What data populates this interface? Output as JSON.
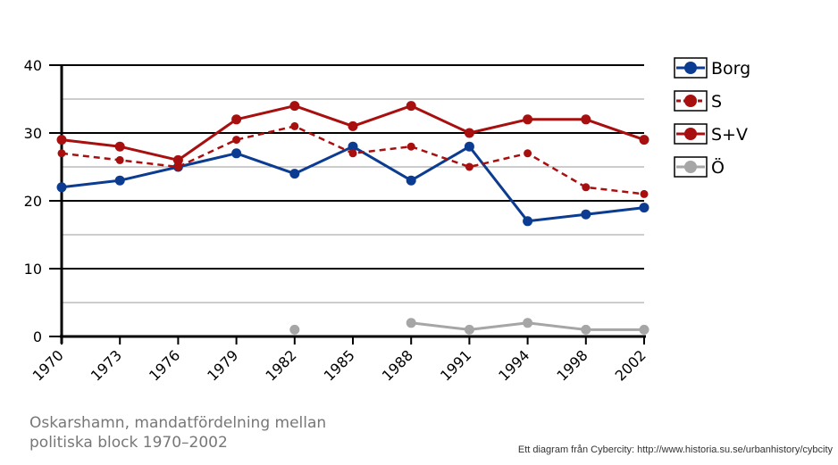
{
  "chart_data": {
    "type": "line",
    "categories": [
      "1970",
      "1973",
      "1976",
      "1979",
      "1982",
      "1985",
      "1988",
      "1991",
      "1994",
      "1998",
      "2002"
    ],
    "ylim": [
      0,
      40
    ],
    "yticks": [
      "0",
      "10",
      "20",
      "30",
      "40"
    ],
    "grid": true,
    "legend_position": "right",
    "series": [
      {
        "name": "Borg",
        "color": "#0b3c91",
        "style": "solid",
        "values": [
          22,
          23,
          25,
          27,
          24,
          28,
          23,
          28,
          17,
          18,
          19
        ]
      },
      {
        "name": "S",
        "color": "#a80f0f",
        "style": "dashed",
        "values": [
          27,
          26,
          25,
          29,
          31,
          27,
          28,
          25,
          27,
          22,
          21
        ]
      },
      {
        "name": "S+V",
        "color": "#a80f0f",
        "style": "solid",
        "values": [
          29,
          28,
          26,
          32,
          34,
          31,
          34,
          30,
          32,
          32,
          29
        ]
      },
      {
        "name": "Ö",
        "color": "#a6a6a6",
        "style": "solid",
        "values": [
          null,
          null,
          null,
          null,
          1,
          null,
          2,
          1,
          2,
          1,
          1
        ]
      }
    ]
  },
  "caption_line1": "Oskarshamn, mandatfördelning mellan",
  "caption_line2": "politiska block 1970–2002",
  "credit": "Ett diagram från Cybercity: http://www.historia.su.se/urbanhistory/cybcity"
}
